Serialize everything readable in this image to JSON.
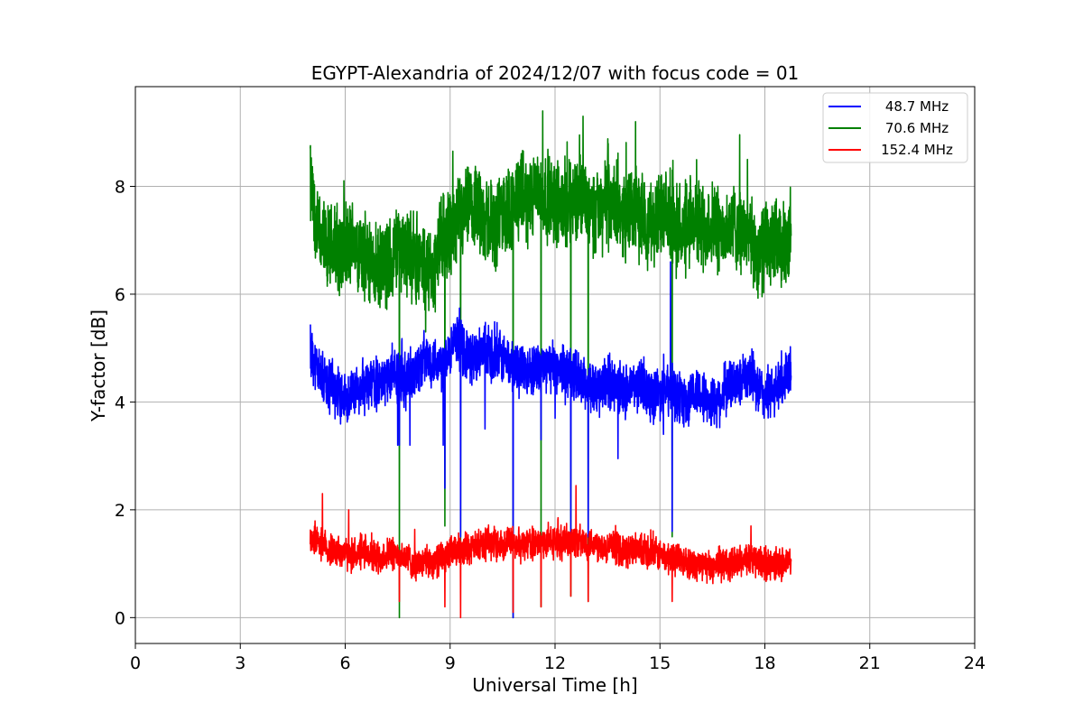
{
  "chart_data": {
    "type": "line",
    "title": "EGYPT-Alexandria of 2024/12/07 with focus code = 01",
    "xlabel": "Universal Time [h]",
    "ylabel": "Y-factor [dB]",
    "xlim": [
      0,
      24
    ],
    "ylim": [
      -0.48,
      9.85
    ],
    "xticks": [
      0,
      3,
      6,
      9,
      12,
      15,
      18,
      21,
      24
    ],
    "yticks": [
      0,
      2,
      4,
      6,
      8
    ],
    "grid": true,
    "legend_position": "top-right",
    "series": [
      {
        "name": "48.7 MHz",
        "color": "#0000ff",
        "x": [
          5.0,
          5.25,
          5.5,
          5.75,
          6.0,
          6.25,
          6.5,
          6.75,
          7.0,
          7.25,
          7.5,
          7.75,
          8.0,
          8.25,
          8.5,
          8.75,
          9.0,
          9.25,
          9.5,
          9.75,
          10.0,
          10.25,
          10.5,
          10.75,
          11.0,
          11.25,
          11.5,
          11.75,
          12.0,
          12.25,
          12.5,
          12.75,
          13.0,
          13.25,
          13.5,
          13.75,
          14.0,
          14.25,
          14.5,
          14.75,
          15.0,
          15.25,
          15.5,
          15.75,
          16.0,
          16.25,
          16.5,
          16.75,
          17.0,
          17.25,
          17.5,
          17.75,
          18.0,
          18.25,
          18.5,
          18.75
        ],
        "y": [
          5.0,
          4.5,
          4.3,
          4.2,
          4.1,
          4.1,
          4.3,
          4.4,
          4.3,
          4.5,
          4.5,
          4.4,
          4.6,
          4.8,
          4.8,
          4.7,
          5.0,
          5.1,
          4.9,
          4.8,
          4.9,
          4.8,
          4.8,
          4.7,
          4.6,
          4.6,
          4.7,
          4.6,
          4.7,
          4.5,
          4.6,
          4.4,
          4.3,
          4.2,
          4.4,
          4.3,
          4.2,
          4.3,
          4.3,
          4.1,
          4.2,
          4.2,
          4.1,
          4.0,
          4.2,
          4.1,
          4.0,
          4.1,
          4.3,
          4.4,
          4.6,
          4.3,
          4.1,
          4.2,
          4.3,
          4.6
        ],
        "noise": 0.45,
        "spikes": [
          [
            7.5,
            3.2
          ],
          [
            7.85,
            3.2
          ],
          [
            8.8,
            3.2
          ],
          [
            10.0,
            3.5
          ],
          [
            12.0,
            3.7
          ],
          [
            13.8,
            2.95
          ],
          [
            15.1,
            3.4
          ],
          [
            15.3,
            6.6
          ]
        ]
      },
      {
        "name": "70.6 MHz",
        "color": "#008000",
        "x": [
          5.0,
          5.25,
          5.5,
          5.75,
          6.0,
          6.25,
          6.5,
          6.75,
          7.0,
          7.25,
          7.5,
          7.75,
          8.0,
          8.25,
          8.5,
          8.75,
          9.0,
          9.25,
          9.5,
          9.75,
          10.0,
          10.25,
          10.5,
          10.75,
          11.0,
          11.25,
          11.5,
          11.75,
          12.0,
          12.25,
          12.5,
          12.75,
          13.0,
          13.25,
          13.5,
          13.75,
          14.0,
          14.25,
          14.5,
          14.75,
          15.0,
          15.25,
          15.5,
          15.75,
          16.0,
          16.25,
          16.5,
          16.75,
          17.0,
          17.25,
          17.5,
          17.75,
          18.0,
          18.25,
          18.5,
          18.75
        ],
        "y": [
          8.0,
          7.0,
          6.8,
          6.9,
          6.8,
          7.0,
          6.7,
          6.5,
          6.4,
          6.6,
          6.9,
          6.8,
          6.7,
          6.5,
          6.4,
          7.0,
          7.2,
          7.3,
          7.5,
          7.6,
          7.4,
          7.2,
          7.5,
          7.6,
          7.8,
          7.7,
          7.9,
          7.8,
          7.7,
          7.6,
          7.8,
          7.7,
          7.5,
          7.6,
          7.7,
          7.6,
          7.5,
          7.6,
          7.4,
          7.3,
          7.5,
          7.3,
          7.2,
          7.1,
          7.4,
          7.2,
          7.3,
          7.1,
          7.2,
          7.3,
          7.0,
          6.8,
          6.9,
          7.0,
          6.8,
          7.2
        ],
        "noise": 0.75,
        "spikes": [
          [
            5.0,
            8.7
          ],
          [
            8.3,
            5.3
          ],
          [
            11.65,
            9.4
          ],
          [
            12.8,
            9.3
          ],
          [
            14.3,
            9.2
          ],
          [
            17.5,
            8.5
          ]
        ]
      },
      {
        "name": "152.4 MHz",
        "color": "#ff0000",
        "x": [
          5.0,
          5.25,
          5.5,
          5.75,
          6.0,
          6.25,
          6.5,
          6.75,
          7.0,
          7.25,
          7.5,
          7.75,
          8.0,
          8.25,
          8.5,
          8.75,
          9.0,
          9.25,
          9.5,
          9.75,
          10.0,
          10.25,
          10.5,
          10.75,
          11.0,
          11.25,
          11.5,
          11.75,
          12.0,
          12.25,
          12.5,
          12.75,
          13.0,
          13.25,
          13.5,
          13.75,
          14.0,
          14.25,
          14.5,
          14.75,
          15.0,
          15.25,
          15.5,
          15.75,
          16.0,
          16.25,
          16.5,
          16.75,
          17.0,
          17.25,
          17.5,
          17.75,
          18.0,
          18.25,
          18.5,
          18.75
        ],
        "y": [
          1.5,
          1.4,
          1.3,
          1.25,
          1.2,
          1.15,
          1.2,
          1.15,
          1.1,
          1.2,
          1.15,
          1.1,
          1.0,
          1.0,
          1.05,
          1.1,
          1.2,
          1.25,
          1.3,
          1.3,
          1.35,
          1.4,
          1.35,
          1.4,
          1.35,
          1.4,
          1.35,
          1.4,
          1.4,
          1.4,
          1.45,
          1.4,
          1.4,
          1.35,
          1.3,
          1.3,
          1.25,
          1.25,
          1.2,
          1.2,
          1.15,
          1.1,
          1.1,
          1.05,
          1.0,
          0.95,
          0.95,
          1.0,
          1.0,
          1.05,
          1.1,
          1.05,
          1.0,
          1.0,
          1.0,
          1.05
        ],
        "noise": 0.28,
        "spikes": [
          [
            5.35,
            2.3
          ],
          [
            6.1,
            2.0
          ],
          [
            12.6,
            2.45
          ],
          [
            17.6,
            1.7
          ]
        ]
      }
    ],
    "dropouts": [
      {
        "x": 7.55,
        "green_to": 0.0,
        "blue_to": 3.2,
        "red_to": 0.3
      },
      {
        "x": 8.85,
        "green_to": 1.7,
        "blue_to": 2.4,
        "red_to": 0.2
      },
      {
        "x": 9.3,
        "green_to": 1.4,
        "blue_to": 1.5,
        "red_to": 0.0
      },
      {
        "x": 10.8,
        "green_to": 0.0,
        "blue_to": 0.0,
        "red_to": 0.1
      },
      {
        "x": 11.6,
        "green_to": 0.2,
        "blue_to": 3.3,
        "red_to": 0.2
      },
      {
        "x": 12.45,
        "green_to": 0.4,
        "blue_to": 1.5,
        "red_to": 0.4
      },
      {
        "x": 12.95,
        "green_to": 0.3,
        "blue_to": 1.5,
        "red_to": 0.3
      },
      {
        "x": 15.35,
        "green_to": 1.5,
        "blue_to": 1.6,
        "red_to": 0.3
      }
    ]
  }
}
